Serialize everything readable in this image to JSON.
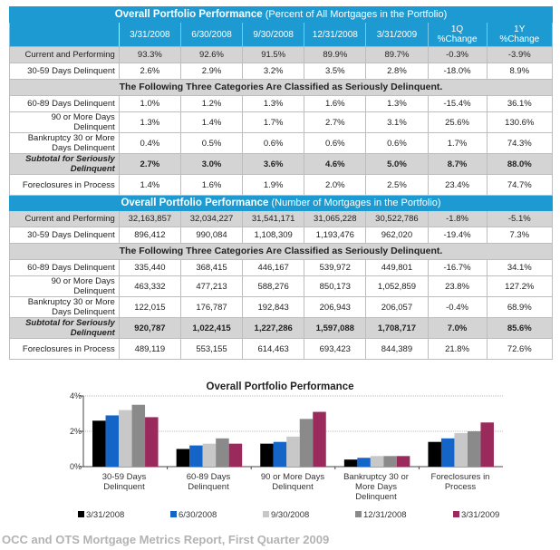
{
  "table": {
    "section1_title_bold": "Overall Portfolio Performance",
    "section1_title_rest": "(Percent of All Mortgages in the Portfolio)",
    "section2_title_bold": "Overall Portfolio Performance",
    "section2_title_rest": "(Number of Mortgages in the Portfolio)",
    "columns": [
      "3/31/2008",
      "6/30/2008",
      "9/30/2008",
      "12/31/2008",
      "3/31/2009",
      "1Q %Change",
      "1Y %Change"
    ],
    "col_1q_line1": "1Q",
    "col_1q_line2": "%Change",
    "col_1y_line1": "1Y",
    "col_1y_line2": "%Change",
    "serious_note": "The Following Three Categories Are Classified as Seriously Delinquent.",
    "percent_rows": {
      "current": {
        "label": "Current and Performing",
        "values": [
          "93.3%",
          "92.6%",
          "91.5%",
          "89.9%",
          "89.7%",
          "-0.3%",
          "-3.9%"
        ]
      },
      "d30": {
        "label": "30-59 Days Delinquent",
        "values": [
          "2.6%",
          "2.9%",
          "3.2%",
          "3.5%",
          "2.8%",
          "-18.0%",
          "8.9%"
        ]
      },
      "d60": {
        "label": "60-89 Days Delinquent",
        "values": [
          "1.0%",
          "1.2%",
          "1.3%",
          "1.6%",
          "1.3%",
          "-15.4%",
          "36.1%"
        ]
      },
      "d90": {
        "label": "90 or More Days Delinquent",
        "values": [
          "1.3%",
          "1.4%",
          "1.7%",
          "2.7%",
          "3.1%",
          "25.6%",
          "130.6%"
        ]
      },
      "bk": {
        "label": "Bankruptcy 30 or More Days Delinquent",
        "values": [
          "0.4%",
          "0.5%",
          "0.6%",
          "0.6%",
          "0.6%",
          "1.7%",
          "74.3%"
        ]
      },
      "sub": {
        "label": "Subtotal for Seriously Delinquent",
        "values": [
          "2.7%",
          "3.0%",
          "3.6%",
          "4.6%",
          "5.0%",
          "8.7%",
          "88.0%"
        ]
      },
      "fc": {
        "label": "Foreclosures in Process",
        "values": [
          "1.4%",
          "1.6%",
          "1.9%",
          "2.0%",
          "2.5%",
          "23.4%",
          "74.7%"
        ]
      }
    },
    "count_rows": {
      "current": {
        "label": "Current and Performing",
        "values": [
          "32,163,857",
          "32,034,227",
          "31,541,171",
          "31,065,228",
          "30,522,786",
          "-1.8%",
          "-5.1%"
        ]
      },
      "d30": {
        "label": "30-59 Days Delinquent",
        "values": [
          "896,412",
          "990,084",
          "1,108,309",
          "1,193,476",
          "962,020",
          "-19.4%",
          "7.3%"
        ]
      },
      "d60": {
        "label": "60-89 Days Delinquent",
        "values": [
          "335,440",
          "368,415",
          "446,167",
          "539,972",
          "449,801",
          "-16.7%",
          "34.1%"
        ]
      },
      "d90": {
        "label": "90 or More Days Delinquent",
        "values": [
          "463,332",
          "477,213",
          "588,276",
          "850,173",
          "1,052,859",
          "23.8%",
          "127.2%"
        ]
      },
      "bk": {
        "label": "Bankruptcy 30 or More Days Delinquent",
        "values": [
          "122,015",
          "176,787",
          "192,843",
          "206,943",
          "206,057",
          "-0.4%",
          "68.9%"
        ]
      },
      "sub": {
        "label": "Subtotal for Seriously Delinquent",
        "values": [
          "920,787",
          "1,022,415",
          "1,227,286",
          "1,597,088",
          "1,708,717",
          "7.0%",
          "85.6%"
        ]
      },
      "fc": {
        "label": "Foreclosures in Process",
        "values": [
          "489,119",
          "553,155",
          "614,463",
          "693,423",
          "844,389",
          "21.8%",
          "72.6%"
        ]
      }
    }
  },
  "chart_data": {
    "type": "bar",
    "title": "Overall Portfolio Performance",
    "xlabel": "",
    "ylabel": "",
    "ylim": [
      0,
      4
    ],
    "yticks": [
      "0%",
      "2%",
      "4%"
    ],
    "grid": true,
    "legend_position": "bottom",
    "categories": [
      "30-59 Days Delinquent",
      "60-89 Days Delinquent",
      "90 or More Days Delinquent",
      "Bankruptcy 30 or More Days Delinquent",
      "Foreclosures in Process"
    ],
    "series": [
      {
        "name": "3/31/2008",
        "color": "#000000",
        "values": [
          2.6,
          1.0,
          1.3,
          0.4,
          1.4
        ]
      },
      {
        "name": "6/30/2008",
        "color": "#1565c8",
        "values": [
          2.9,
          1.2,
          1.4,
          0.5,
          1.6
        ]
      },
      {
        "name": "9/30/2008",
        "color": "#c8c8c8",
        "values": [
          3.2,
          1.3,
          1.7,
          0.6,
          1.9
        ]
      },
      {
        "name": "12/31/2008",
        "color": "#8a8a8a",
        "values": [
          3.5,
          1.6,
          2.7,
          0.6,
          2.0
        ]
      },
      {
        "name": "3/31/2009",
        "color": "#9b2a5c",
        "values": [
          2.8,
          1.3,
          3.1,
          0.6,
          2.5
        ]
      }
    ]
  },
  "chart_labels": {
    "cat0_l1": "30-59 Days",
    "cat0_l2": "Delinquent",
    "cat1_l1": "60-89 Days",
    "cat1_l2": "Delinquent",
    "cat2_l1": "90 or More Days",
    "cat2_l2": "Delinquent",
    "cat3_l1": "Bankruptcy 30 or",
    "cat3_l2": "More Days",
    "cat3_l3": "Delinquent",
    "cat4_l1": "Foreclosures in",
    "cat4_l2": "Process"
  },
  "footer": "OCC and OTS Mortgage Metrics Report, First Quarter 2009"
}
